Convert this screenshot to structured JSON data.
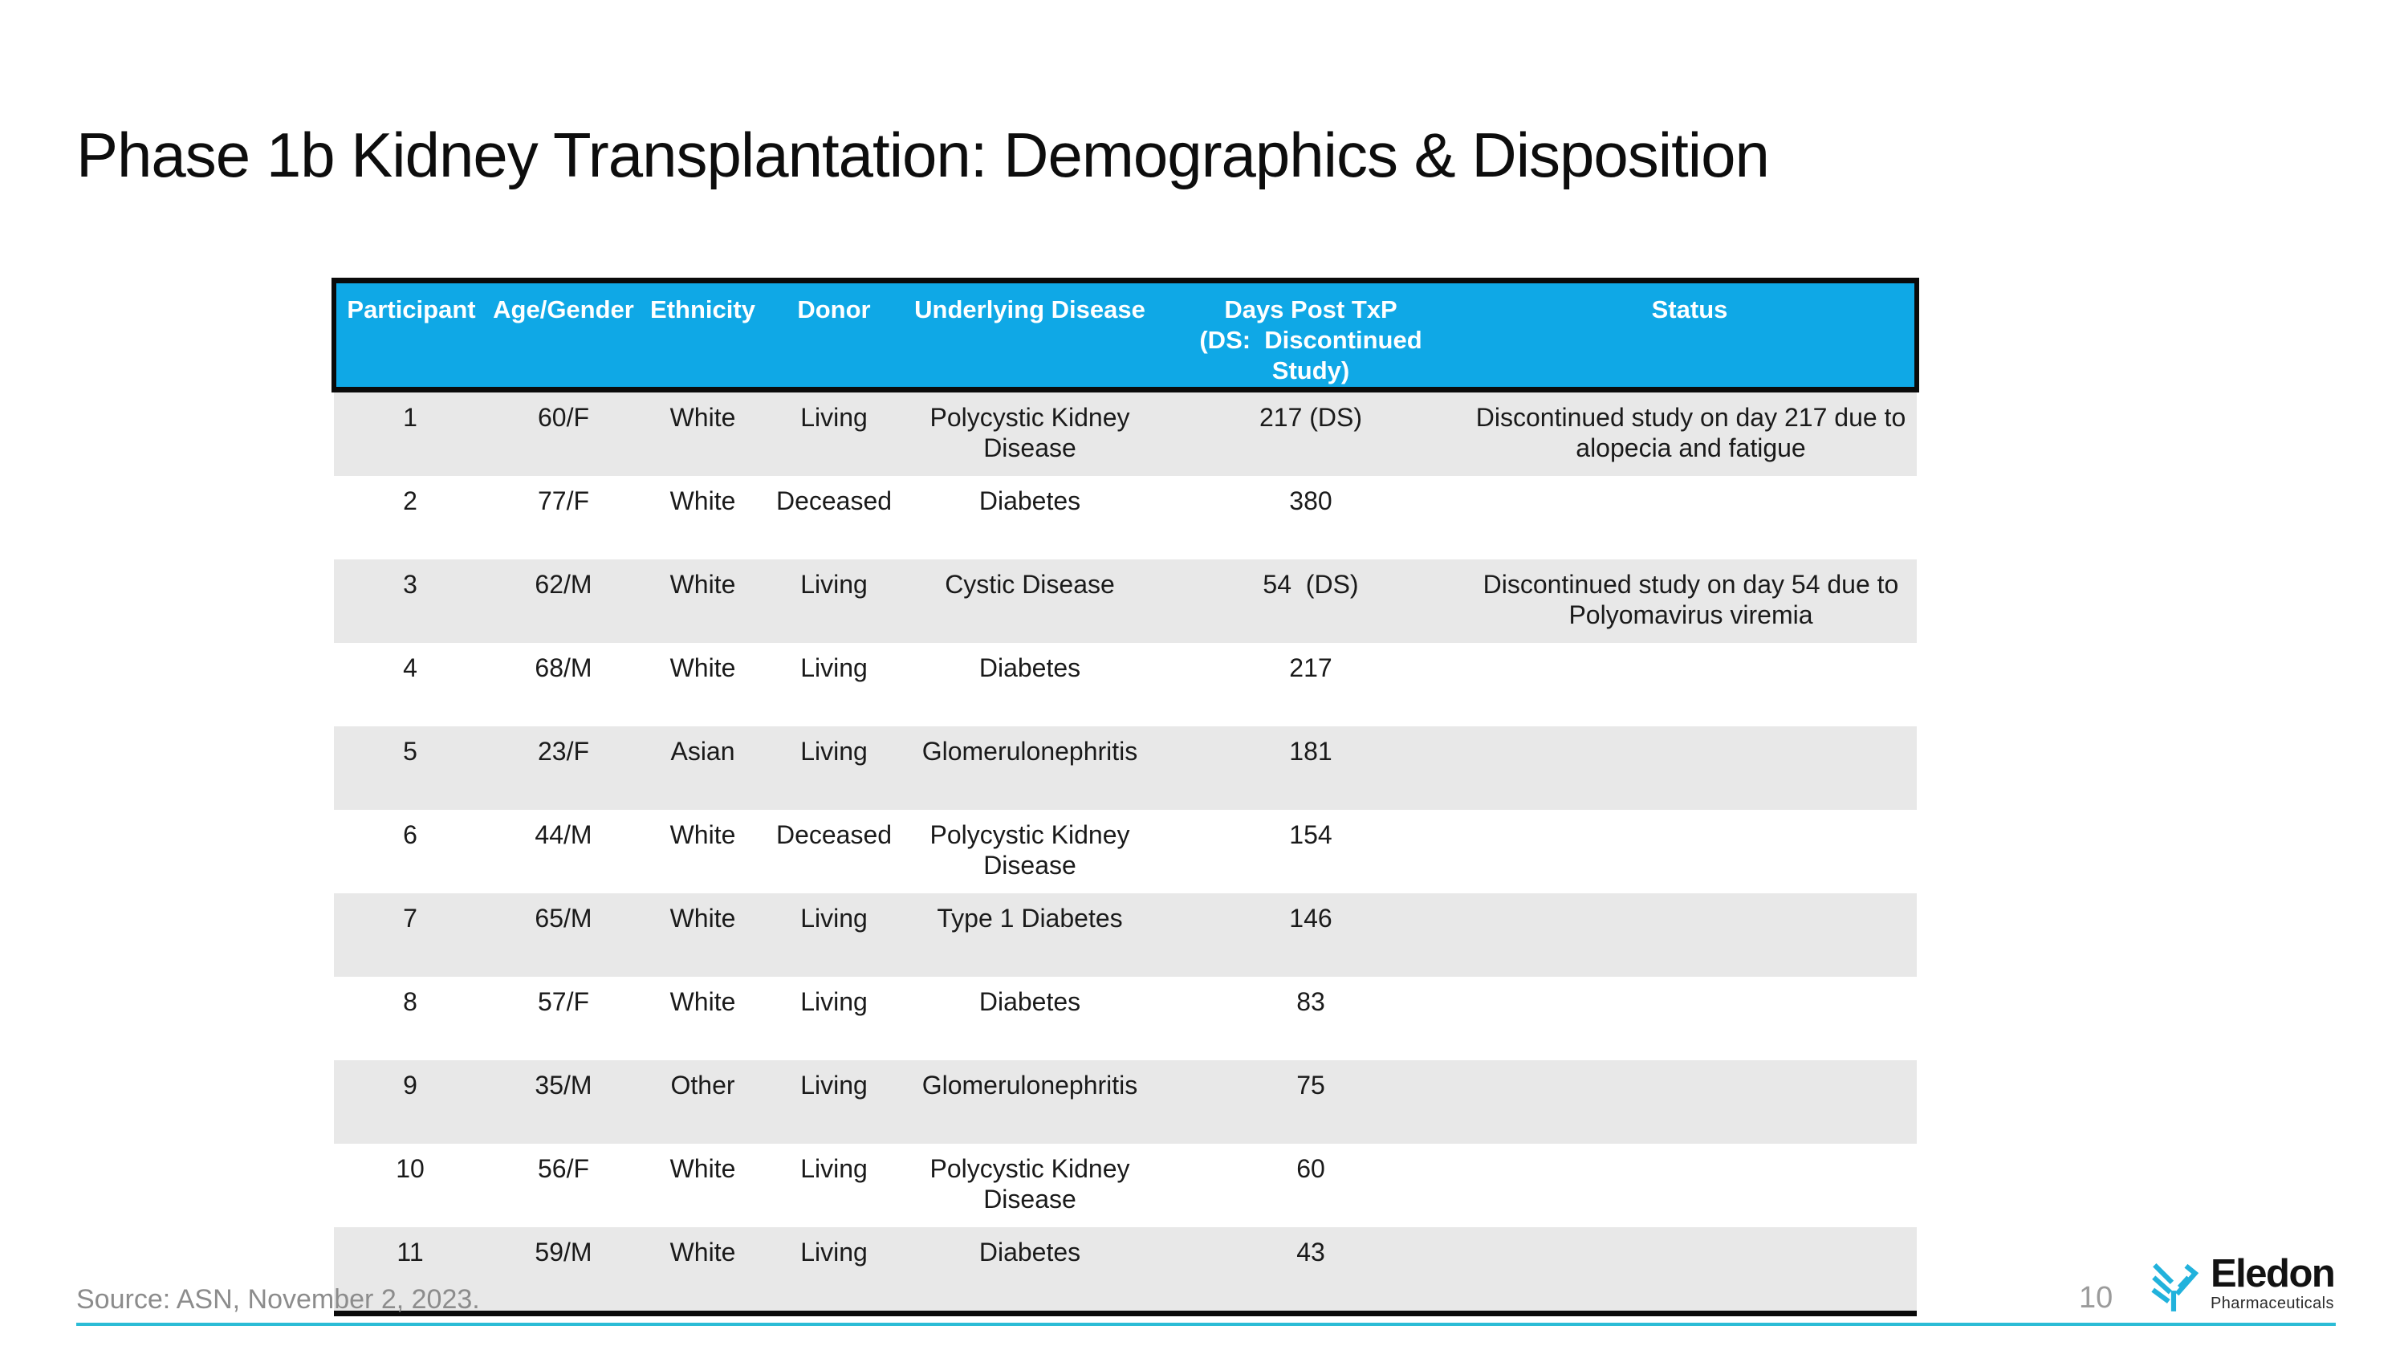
{
  "slide": {
    "title": "Phase 1b Kidney Transplantation: Demographics & Disposition",
    "footer": {
      "source": "Source: ASN, November 2, 2023.",
      "page_number": "10",
      "logo_name": "Eledon",
      "logo_subtext": "Pharmaceuticals"
    },
    "colors": {
      "header_bg": "#0FA8E6",
      "header_text": "#FFFFFF",
      "row_alt_bg": "#E8E8E8",
      "table_border": "#0A0A0A",
      "body_text": "#1A1A1A",
      "footer_line": "#2BBCD6",
      "logo_cyan": "#21B2DC",
      "source_text": "#8C8C8C"
    }
  },
  "table": {
    "columns": [
      {
        "key": "participant",
        "label": "Participant"
      },
      {
        "key": "age_gender",
        "label": "Age/Gender"
      },
      {
        "key": "ethnicity",
        "label": "Ethnicity"
      },
      {
        "key": "donor",
        "label": "Donor"
      },
      {
        "key": "disease",
        "label": "Underlying Disease"
      },
      {
        "key": "days_post_txp",
        "label": "Days Post TxP",
        "label2": "(DS:  Discontinued Study)"
      },
      {
        "key": "status",
        "label": "Status"
      }
    ],
    "rows": [
      [
        "1",
        "60/F",
        "White",
        "Living",
        "Polycystic Kidney Disease",
        "217 (DS)",
        "Discontinued study on day 217 due to alopecia and fatigue"
      ],
      [
        "2",
        "77/F",
        "White",
        "Deceased",
        "Diabetes",
        "380",
        ""
      ],
      [
        "3",
        "62/M",
        "White",
        "Living",
        "Cystic Disease",
        "54  (DS)",
        "Discontinued study on day 54 due to Polyomavirus viremia"
      ],
      [
        "4",
        "68/M",
        "White",
        "Living",
        "Diabetes",
        "217",
        ""
      ],
      [
        "5",
        "23/F",
        "Asian",
        "Living",
        "Glomerulonephritis",
        "181",
        ""
      ],
      [
        "6",
        "44/M",
        "White",
        "Deceased",
        "Polycystic Kidney Disease",
        "154",
        ""
      ],
      [
        "7",
        "65/M",
        "White",
        "Living",
        "Type 1 Diabetes",
        "146",
        ""
      ],
      [
        "8",
        "57/F",
        "White",
        "Living",
        "Diabetes",
        "83",
        ""
      ],
      [
        "9",
        "35/M",
        "Other",
        "Living",
        "Glomerulonephritis",
        "75",
        ""
      ],
      [
        "10",
        "56/F",
        "White",
        "Living",
        "Polycystic Kidney Disease",
        "60",
        ""
      ],
      [
        "11",
        "59/M",
        "White",
        "Living",
        "Diabetes",
        "43",
        ""
      ]
    ]
  }
}
